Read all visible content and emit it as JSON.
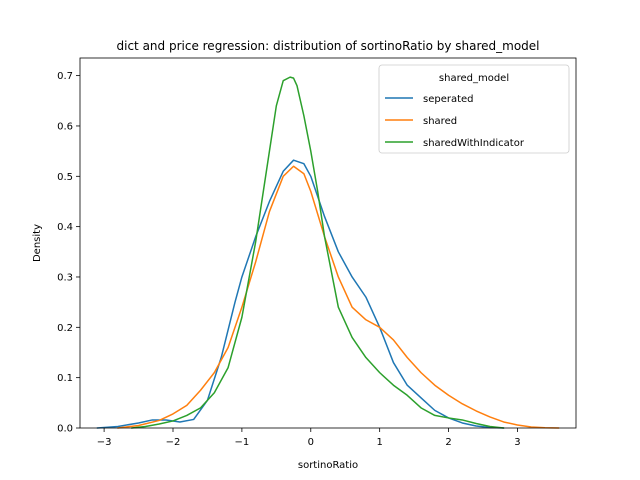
{
  "chart_data": {
    "type": "line",
    "title": "dict and price regression: distribution of sortinoRatio by shared_model",
    "xlabel": "sortinoRatio",
    "ylabel": "Density",
    "xlim": [
      -3.35,
      3.85
    ],
    "ylim": [
      0,
      0.735
    ],
    "xticks": [
      "−3",
      "−2",
      "−1",
      "0",
      "1",
      "2",
      "3"
    ],
    "xtick_values": [
      -3,
      -2,
      -1,
      0,
      1,
      2,
      3
    ],
    "yticks": [
      "0.0",
      "0.1",
      "0.2",
      "0.3",
      "0.4",
      "0.5",
      "0.6",
      "0.7"
    ],
    "ytick_values": [
      0,
      0.1,
      0.2,
      0.3,
      0.4,
      0.5,
      0.6,
      0.7
    ],
    "grid": false,
    "legend": {
      "title": "shared_model",
      "placement": "top-right"
    },
    "series": [
      {
        "name": "seperated",
        "color": "#1f77b4",
        "x": [
          -3.1,
          -2.8,
          -2.5,
          -2.3,
          -2.1,
          -1.9,
          -1.7,
          -1.5,
          -1.3,
          -1.1,
          -1.0,
          -0.8,
          -0.6,
          -0.4,
          -0.25,
          -0.1,
          0.0,
          0.2,
          0.4,
          0.6,
          0.8,
          1.0,
          1.2,
          1.4,
          1.6,
          1.8,
          2.0,
          2.2,
          2.4,
          2.6,
          2.8
        ],
        "y": [
          0.0,
          0.003,
          0.01,
          0.016,
          0.016,
          0.012,
          0.017,
          0.055,
          0.14,
          0.25,
          0.3,
          0.38,
          0.45,
          0.51,
          0.532,
          0.525,
          0.5,
          0.42,
          0.35,
          0.3,
          0.26,
          0.2,
          0.13,
          0.085,
          0.06,
          0.035,
          0.02,
          0.01,
          0.004,
          0.001,
          0.0
        ]
      },
      {
        "name": "shared",
        "color": "#ff7f0e",
        "x": [
          -2.8,
          -2.5,
          -2.2,
          -2.0,
          -1.8,
          -1.6,
          -1.4,
          -1.2,
          -1.0,
          -0.8,
          -0.6,
          -0.4,
          -0.25,
          -0.1,
          0.0,
          0.2,
          0.4,
          0.6,
          0.8,
          1.0,
          1.2,
          1.4,
          1.6,
          1.8,
          2.0,
          2.2,
          2.4,
          2.6,
          2.8,
          3.0,
          3.2,
          3.4,
          3.6
        ],
        "y": [
          0.0,
          0.005,
          0.015,
          0.028,
          0.045,
          0.075,
          0.11,
          0.16,
          0.24,
          0.33,
          0.43,
          0.5,
          0.52,
          0.505,
          0.47,
          0.38,
          0.3,
          0.24,
          0.215,
          0.2,
          0.175,
          0.14,
          0.11,
          0.085,
          0.065,
          0.048,
          0.034,
          0.022,
          0.012,
          0.006,
          0.002,
          0.0005,
          0.0
        ]
      },
      {
        "name": "sharedWithIndicator",
        "color": "#2ca02c",
        "x": [
          -2.6,
          -2.4,
          -2.2,
          -2.0,
          -1.8,
          -1.6,
          -1.4,
          -1.2,
          -1.0,
          -0.8,
          -0.6,
          -0.5,
          -0.4,
          -0.3,
          -0.25,
          -0.2,
          -0.1,
          0.0,
          0.1,
          0.2,
          0.4,
          0.6,
          0.8,
          1.0,
          1.2,
          1.4,
          1.6,
          1.8,
          2.0,
          2.2,
          2.4,
          2.6,
          2.8
        ],
        "y": [
          0.0,
          0.003,
          0.008,
          0.014,
          0.025,
          0.04,
          0.07,
          0.12,
          0.22,
          0.37,
          0.55,
          0.64,
          0.69,
          0.697,
          0.695,
          0.68,
          0.62,
          0.55,
          0.47,
          0.38,
          0.24,
          0.18,
          0.14,
          0.11,
          0.085,
          0.065,
          0.04,
          0.025,
          0.02,
          0.016,
          0.009,
          0.003,
          0.0
        ]
      }
    ]
  }
}
